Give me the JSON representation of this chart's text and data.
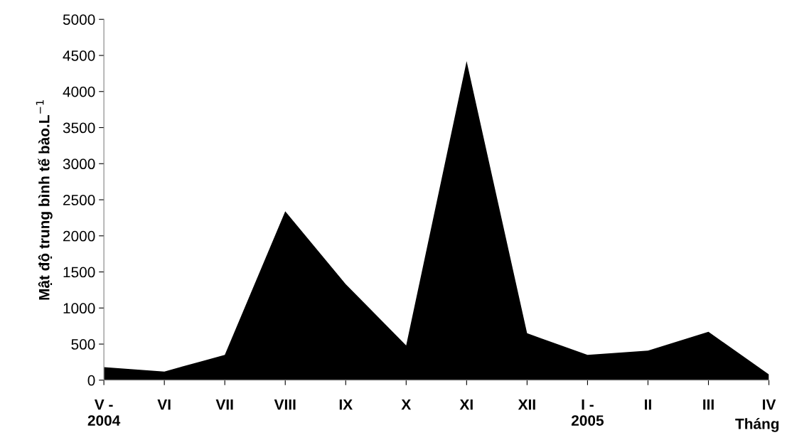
{
  "chart_data": {
    "type": "area",
    "ylabel": "Mật độ trung bình tế bào.L$^{−1}$",
    "xlabel": "Tháng",
    "categories": [
      "V -\n2004",
      "VI",
      "VII",
      "VIII",
      "IX",
      "X",
      "XI",
      "XII",
      "I -\n2005",
      "II",
      "III",
      "IV"
    ],
    "series": [
      {
        "color": "#000000",
        "values": [
          180,
          120,
          350,
          2340,
          1330,
          480,
          4420,
          650,
          350,
          410,
          670,
          80
        ]
      }
    ],
    "ylim": [
      0,
      5000
    ],
    "yticks": [
      0,
      500,
      1000,
      1500,
      2000,
      2500,
      3000,
      3500,
      4000,
      4500,
      5000
    ],
    "grid": false
  }
}
